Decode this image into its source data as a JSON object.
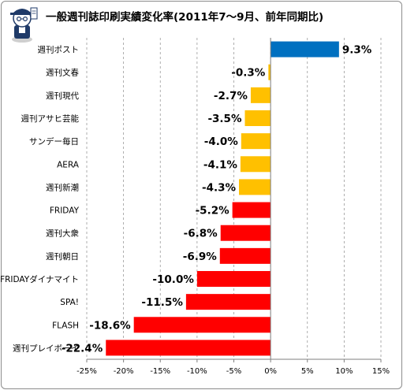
{
  "mascot_icon": "reporter-mascot-icon",
  "chart_data": {
    "type": "bar",
    "orientation": "horizontal",
    "title": "一般週刊誌印刷実績変化率(2011年7〜9月、前年同期比)",
    "categories": [
      "週刊ポスト",
      "週刊文春",
      "週刊現代",
      "週刊アサヒ芸能",
      "サンデー毎日",
      "AERA",
      "週刊新潮",
      "FRIDAY",
      "週刊大衆",
      "週刊朝日",
      "FRIDAYダイナマイト",
      "SPA!",
      "FLASH",
      "週刊プレイボーイ"
    ],
    "values": [
      9.3,
      -0.3,
      -2.7,
      -3.5,
      -4.0,
      -4.1,
      -4.3,
      -5.2,
      -6.8,
      -6.9,
      -10.0,
      -11.5,
      -18.6,
      -22.4
    ],
    "data_labels": [
      "9.3%",
      "-0.3%",
      "-2.7%",
      "-3.5%",
      "-4.0%",
      "-4.1%",
      "-4.3%",
      "-5.2%",
      "-6.8%",
      "-6.9%",
      "-10.0%",
      "-11.5%",
      "-18.6%",
      "-22.4%"
    ],
    "xlim": [
      -25,
      15
    ],
    "xticks": [
      -25,
      -20,
      -15,
      -10,
      -5,
      0,
      5,
      10,
      15
    ],
    "xtick_labels": [
      "-25%",
      "-20%",
      "-15%",
      "-10%",
      "-5%",
      "0%",
      "5%",
      "10%",
      "15%"
    ],
    "grid": "vertical dashed",
    "legend": "none",
    "colors": {
      "positive": "#0070c0",
      "mild_negative": "#ffc000",
      "strong_negative": "#ff0000"
    },
    "bar_colors": [
      "positive",
      "mild_negative",
      "mild_negative",
      "mild_negative",
      "mild_negative",
      "mild_negative",
      "mild_negative",
      "strong_negative",
      "strong_negative",
      "strong_negative",
      "strong_negative",
      "strong_negative",
      "strong_negative",
      "strong_negative"
    ]
  }
}
